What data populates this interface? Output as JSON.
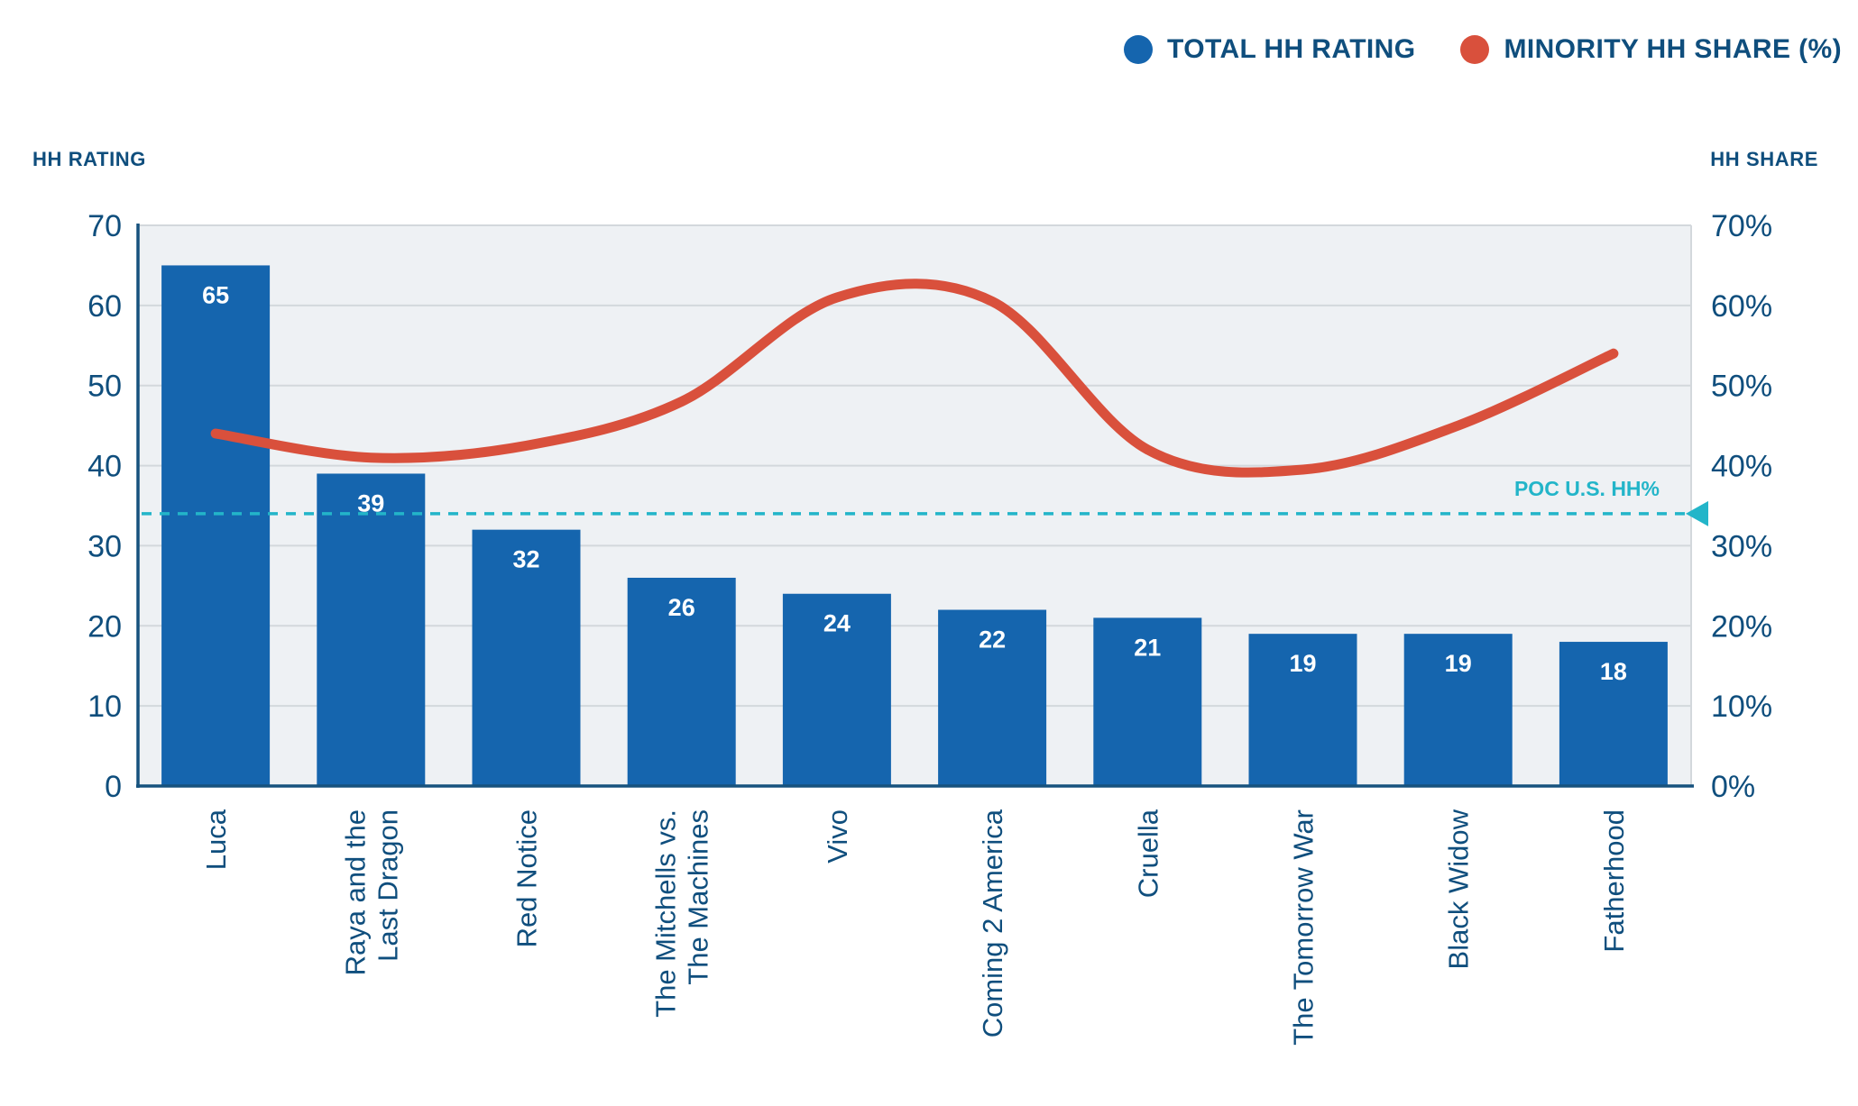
{
  "legend": [
    {
      "label": "TOTAL HH RATING",
      "color": "#1565ae"
    },
    {
      "label": "MINORITY HH SHARE (%)",
      "color": "#d9503c"
    }
  ],
  "axis_titles": {
    "left": "HH RATING",
    "right": "HH SHARE"
  },
  "colors": {
    "bar": "#1565ae",
    "line": "#d9503c",
    "text": "#0f4e7d",
    "teal": "#23b5c9",
    "plot_bg": "#eef1f4",
    "grid": "#d3d8dc",
    "axis": "#16527e",
    "bar_label": "#ffffff"
  },
  "chart_data": {
    "type": "bar",
    "subtype": "combo-bar-line-dual-axis",
    "categories": [
      "Luca",
      "Raya and the\nLast Dragon",
      "Red Notice",
      "The Mitchells vs.\nThe Machines",
      "Vivo",
      "Coming 2 America",
      "Cruella",
      "The Tomorrow War",
      "Black Widow",
      "Fatherhood"
    ],
    "series": [
      {
        "name": "TOTAL HH RATING",
        "type": "bar",
        "axis": "left",
        "values": [
          65,
          39,
          32,
          26,
          24,
          22,
          21,
          19,
          19,
          18
        ]
      },
      {
        "name": "MINORITY HH SHARE (%)",
        "type": "line",
        "axis": "right",
        "values": [
          44,
          41,
          42.5,
          48,
          61,
          60.5,
          42,
          39.5,
          45,
          54
        ]
      }
    ],
    "reference_line": {
      "label": "POC U.S. HH%",
      "value": 34
    },
    "left_axis": {
      "title": "HH RATING",
      "min": 0,
      "max": 70,
      "step": 10,
      "tick_suffix": ""
    },
    "right_axis": {
      "title": "HH SHARE",
      "min": 0,
      "max": 70,
      "step": 10,
      "tick_suffix": "%"
    },
    "grid": true,
    "legend_position": "top-right"
  }
}
